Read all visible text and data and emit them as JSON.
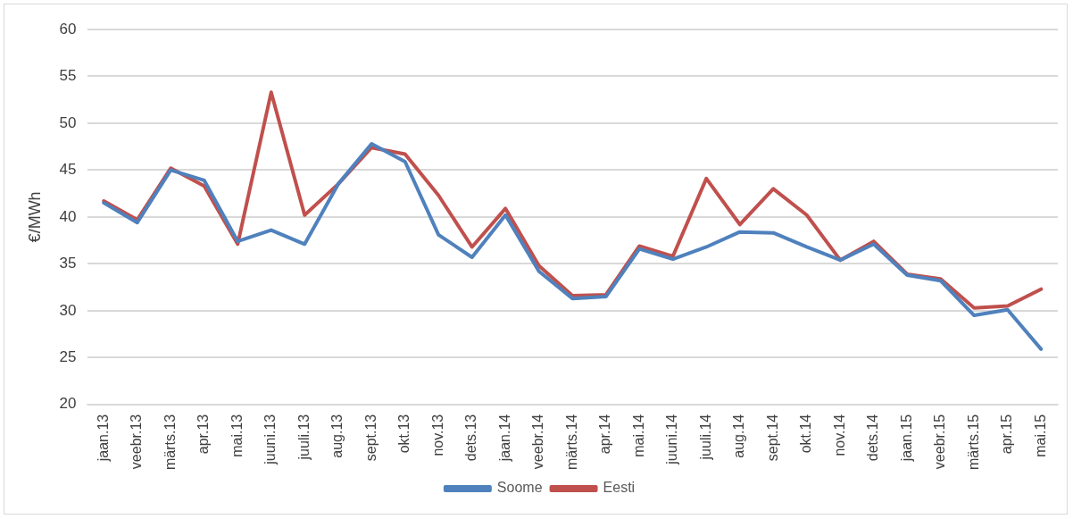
{
  "chart_data": {
    "type": "line",
    "ylabel": "€/MWh",
    "categories": [
      "jaan.13",
      "veebr.13",
      "märts.13",
      "apr.13",
      "mai.13",
      "juuni.13",
      "juuli.13",
      "aug.13",
      "sept.13",
      "okt.13",
      "nov.13",
      "dets.13",
      "jaan.14",
      "veebr.14",
      "märts.14",
      "apr.14",
      "mai.14",
      "juuni.14",
      "juuli.14",
      "aug.14",
      "sept.14",
      "okt.14",
      "nov.14",
      "dets.14",
      "jaan.15",
      "veebr.15",
      "märts.15",
      "apr.15",
      "mai.15"
    ],
    "series": [
      {
        "name": "Soome",
        "color": "#4f81bd",
        "values": [
          41.5,
          39.4,
          45.0,
          43.9,
          37.4,
          38.6,
          37.1,
          43.5,
          47.8,
          45.9,
          38.1,
          35.7,
          40.2,
          34.2,
          31.3,
          31.5,
          36.6,
          35.5,
          36.8,
          38.4,
          38.3,
          36.8,
          35.4,
          37.1,
          33.8,
          33.2,
          29.5,
          30.1,
          25.9
        ]
      },
      {
        "name": "Eesti",
        "color": "#c0504d",
        "values": [
          41.7,
          39.7,
          45.2,
          43.3,
          37.1,
          53.3,
          40.2,
          43.5,
          47.4,
          46.7,
          42.3,
          36.8,
          40.9,
          34.8,
          31.6,
          31.7,
          36.9,
          35.8,
          44.1,
          39.2,
          43.0,
          40.2,
          35.4,
          37.4,
          33.9,
          33.4,
          30.3,
          30.5,
          32.3
        ]
      }
    ],
    "ylim": [
      20,
      60
    ],
    "yticks": [
      20,
      25,
      30,
      35,
      40,
      45,
      50,
      55,
      60
    ],
    "grid": "y",
    "legend": "bottom",
    "marker": "none",
    "line_style": "solid"
  }
}
